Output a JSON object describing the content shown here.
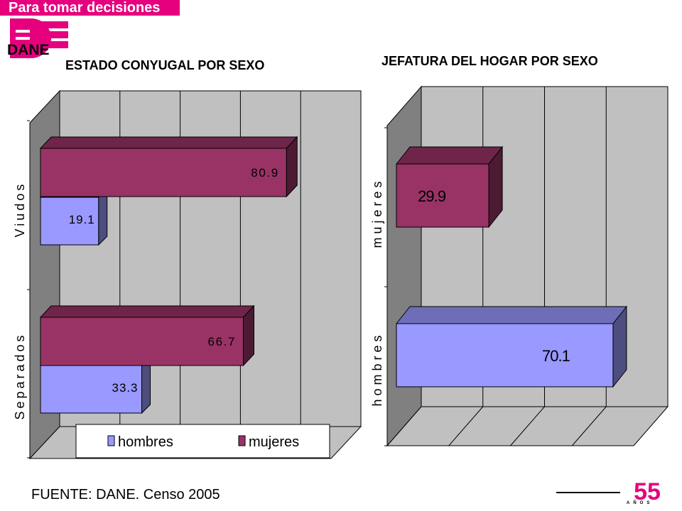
{
  "header": {
    "banner": "Para tomar decisiones",
    "logo_text": "DANE",
    "anniversary_number": "55",
    "anniversary_label": "AÑOS"
  },
  "colors": {
    "brand": "#e6007e",
    "hombres": "#9999ff",
    "mujeres": "#993366",
    "plot_wall": "#c0c0c0",
    "plot_wall_side": "#808080"
  },
  "footer": {
    "source": "FUENTE: DANE. Censo 2005"
  },
  "chart_data": [
    {
      "type": "bar",
      "orientation": "horizontal",
      "title": "ESTADO CONYUGAL POR SEXO",
      "categories": [
        "Separados",
        "Viudos"
      ],
      "series": [
        {
          "name": "hombres",
          "values": [
            33.3,
            19.1
          ]
        },
        {
          "name": "mujeres",
          "values": [
            66.7,
            80.9
          ]
        }
      ],
      "xlim": [
        0,
        100
      ],
      "grid": true,
      "legend": "bottom",
      "style": "3d"
    },
    {
      "type": "bar",
      "orientation": "horizontal",
      "title": "JEFATURA DEL HOGAR POR SEXO",
      "categories": [
        "hombres",
        "mujeres"
      ],
      "values": [
        70.1,
        29.9
      ],
      "xlim": [
        0,
        100
      ],
      "grid": true,
      "legend": "none",
      "style": "3d"
    }
  ]
}
